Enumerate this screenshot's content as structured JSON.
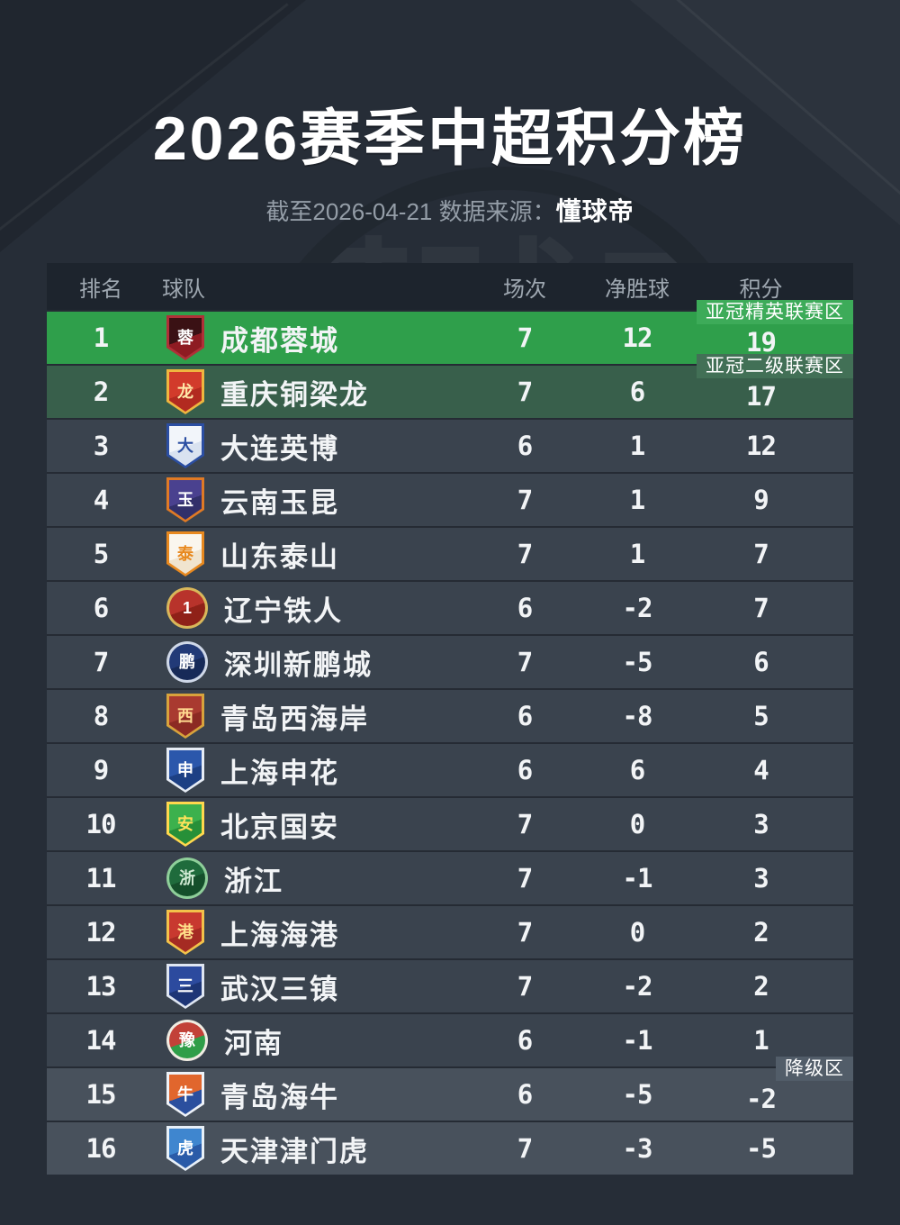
{
  "title": "2026赛季中超积分榜",
  "subtitle": {
    "prefix": "截至2026-04-21 数据来源：",
    "source": "懂球帝"
  },
  "watermark": "懂球帝",
  "columns": {
    "rank": "排名",
    "team": "球队",
    "played": "场次",
    "gd": "净胜球",
    "points": "积分"
  },
  "colors": {
    "page_bg": "#262d37",
    "header_bg": "#1d242d",
    "row_bg": "#3a434e",
    "header_text": "#9fa8b1",
    "text": "#f2f4f6"
  },
  "zones": {
    "acl_elite": {
      "label": "亚冠精英联赛区",
      "row_bg": "#2f9f4b",
      "badge_bg": "#3dab59"
    },
    "acl_two": {
      "label": "亚冠二级联赛区",
      "row_bg": "#385f4b",
      "badge_bg": "#427056"
    },
    "relegation": {
      "label": "降级区",
      "row_bg": "#48515c",
      "badge_bg": "#525d69"
    }
  },
  "teams": [
    {
      "rank": "1",
      "name": "成都蓉城",
      "played": "7",
      "gd": "12",
      "points": "19",
      "zone": "acl_elite",
      "badge": true,
      "logo": {
        "shape": "shield",
        "c1": "#3a1114",
        "c2": "#8e1b22",
        "ring": "#b03038",
        "label": "蓉",
        "labelColor": "#ffffff"
      }
    },
    {
      "rank": "2",
      "name": "重庆铜梁龙",
      "played": "7",
      "gd": "6",
      "points": "17",
      "zone": "acl_two",
      "badge": true,
      "logo": {
        "shape": "shield",
        "c1": "#d23b2b",
        "c2": "#b22a20",
        "ring": "#efb63f",
        "label": "龙",
        "labelColor": "#ffe9a8"
      }
    },
    {
      "rank": "3",
      "name": "大连英博",
      "played": "6",
      "gd": "1",
      "points": "12",
      "zone": null,
      "badge": false,
      "logo": {
        "shape": "shield",
        "c1": "#f2f5fa",
        "c2": "#d9e2f0",
        "ring": "#2b4ea2",
        "label": "大",
        "labelColor": "#2b4ea2"
      }
    },
    {
      "rank": "4",
      "name": "云南玉昆",
      "played": "7",
      "gd": "1",
      "points": "9",
      "zone": null,
      "badge": false,
      "logo": {
        "shape": "shield",
        "c1": "#4a418f",
        "c2": "#32306a",
        "ring": "#e07a25",
        "label": "玉",
        "labelColor": "#ffffff"
      }
    },
    {
      "rank": "5",
      "name": "山东泰山",
      "played": "7",
      "gd": "1",
      "points": "7",
      "zone": null,
      "badge": false,
      "logo": {
        "shape": "shield",
        "c1": "#faf6ee",
        "c2": "#f0e4cf",
        "ring": "#e8891f",
        "label": "泰",
        "labelColor": "#e8891f"
      }
    },
    {
      "rank": "6",
      "name": "辽宁铁人",
      "played": "6",
      "gd": "-2",
      "points": "7",
      "zone": null,
      "badge": false,
      "logo": {
        "shape": "circle",
        "c1": "#b8332b",
        "c2": "#8f2118",
        "ring": "#d9b75a",
        "label": "1",
        "labelColor": "#ffffff"
      }
    },
    {
      "rank": "7",
      "name": "深圳新鹏城",
      "played": "7",
      "gd": "-5",
      "points": "6",
      "zone": null,
      "badge": false,
      "logo": {
        "shape": "circle",
        "c1": "#223a77",
        "c2": "#172a58",
        "ring": "#cfd8e8",
        "label": "鹏",
        "labelColor": "#ffffff"
      }
    },
    {
      "rank": "8",
      "name": "青岛西海岸",
      "played": "6",
      "gd": "-8",
      "points": "5",
      "zone": null,
      "badge": false,
      "logo": {
        "shape": "shield",
        "c1": "#a93a30",
        "c2": "#8c2a23",
        "ring": "#d8a33c",
        "label": "西",
        "labelColor": "#ffd98f"
      }
    },
    {
      "rank": "9",
      "name": "上海申花",
      "played": "6",
      "gd": "6",
      "points": "4",
      "zone": null,
      "badge": false,
      "logo": {
        "shape": "shield",
        "c1": "#2b57ab",
        "c2": "#1d4084",
        "ring": "#e6ecf5",
        "label": "申",
        "labelColor": "#ffffff"
      }
    },
    {
      "rank": "10",
      "name": "北京国安",
      "played": "7",
      "gd": "0",
      "points": "3",
      "zone": null,
      "badge": false,
      "logo": {
        "shape": "shield",
        "c1": "#3cb14d",
        "c2": "#279038",
        "ring": "#ffd84d",
        "label": "安",
        "labelColor": "#ffe25a"
      }
    },
    {
      "rank": "11",
      "name": "浙江",
      "played": "7",
      "gd": "-1",
      "points": "3",
      "zone": null,
      "badge": false,
      "logo": {
        "shape": "circle",
        "c1": "#1f6b3c",
        "c2": "#154f2b",
        "ring": "#8fcf9a",
        "label": "浙",
        "labelColor": "#cfe9d2"
      }
    },
    {
      "rank": "12",
      "name": "上海海港",
      "played": "7",
      "gd": "0",
      "points": "2",
      "zone": null,
      "badge": false,
      "logo": {
        "shape": "shield",
        "c1": "#c8392f",
        "c2": "#a52b23",
        "ring": "#f3c24a",
        "label": "港",
        "labelColor": "#ffe08a"
      }
    },
    {
      "rank": "13",
      "name": "武汉三镇",
      "played": "7",
      "gd": "-2",
      "points": "2",
      "zone": null,
      "badge": false,
      "logo": {
        "shape": "shield",
        "c1": "#2c4a9e",
        "c2": "#1d3576",
        "ring": "#dfe6f2",
        "label": "三",
        "labelColor": "#ffffff"
      }
    },
    {
      "rank": "14",
      "name": "河南",
      "played": "6",
      "gd": "-1",
      "points": "1",
      "zone": null,
      "badge": false,
      "logo": {
        "shape": "circle",
        "c1": "#c24138",
        "c2": "#2f9e48",
        "ring": "#f0ece2",
        "label": "豫",
        "labelColor": "#ffffff"
      }
    },
    {
      "rank": "15",
      "name": "青岛海牛",
      "played": "6",
      "gd": "-5",
      "points": "-2",
      "zone": "relegation",
      "badge": true,
      "logo": {
        "shape": "shield",
        "c1": "#e1662d",
        "c2": "#2b4f9e",
        "ring": "#eef2f8",
        "label": "牛",
        "labelColor": "#ffffff"
      }
    },
    {
      "rank": "16",
      "name": "天津津门虎",
      "played": "7",
      "gd": "-3",
      "points": "-5",
      "zone": "relegation",
      "badge": false,
      "logo": {
        "shape": "shield",
        "c1": "#3f86cf",
        "c2": "#2a5ba8",
        "ring": "#e8f0f8",
        "label": "虎",
        "labelColor": "#ffffff"
      }
    }
  ],
  "chart_data": {
    "type": "table",
    "title": "2026赛季中超积分榜",
    "subtitle": "截至2026-04-21 数据来源：懂球帝",
    "columns": [
      "排名",
      "球队",
      "场次",
      "净胜球",
      "积分"
    ],
    "rows": [
      [
        1,
        "成都蓉城",
        7,
        12,
        19
      ],
      [
        2,
        "重庆铜梁龙",
        7,
        6,
        17
      ],
      [
        3,
        "大连英博",
        6,
        1,
        12
      ],
      [
        4,
        "云南玉昆",
        7,
        1,
        9
      ],
      [
        5,
        "山东泰山",
        7,
        1,
        7
      ],
      [
        6,
        "辽宁铁人",
        6,
        -2,
        7
      ],
      [
        7,
        "深圳新鹏城",
        7,
        -5,
        6
      ],
      [
        8,
        "青岛西海岸",
        6,
        -8,
        5
      ],
      [
        9,
        "上海申花",
        6,
        6,
        4
      ],
      [
        10,
        "北京国安",
        7,
        0,
        3
      ],
      [
        11,
        "浙江",
        7,
        -1,
        3
      ],
      [
        12,
        "上海海港",
        7,
        0,
        2
      ],
      [
        13,
        "武汉三镇",
        7,
        -2,
        2
      ],
      [
        14,
        "河南",
        6,
        -1,
        1
      ],
      [
        15,
        "青岛海牛",
        6,
        -5,
        -2
      ],
      [
        16,
        "天津津门虎",
        7,
        -3,
        -5
      ]
    ],
    "annotations": [
      {
        "label": "亚冠精英联赛区",
        "applies_to_rank": 1
      },
      {
        "label": "亚冠二级联赛区",
        "applies_to_rank": 2
      },
      {
        "label": "降级区",
        "applies_to_rank": 15
      }
    ]
  }
}
